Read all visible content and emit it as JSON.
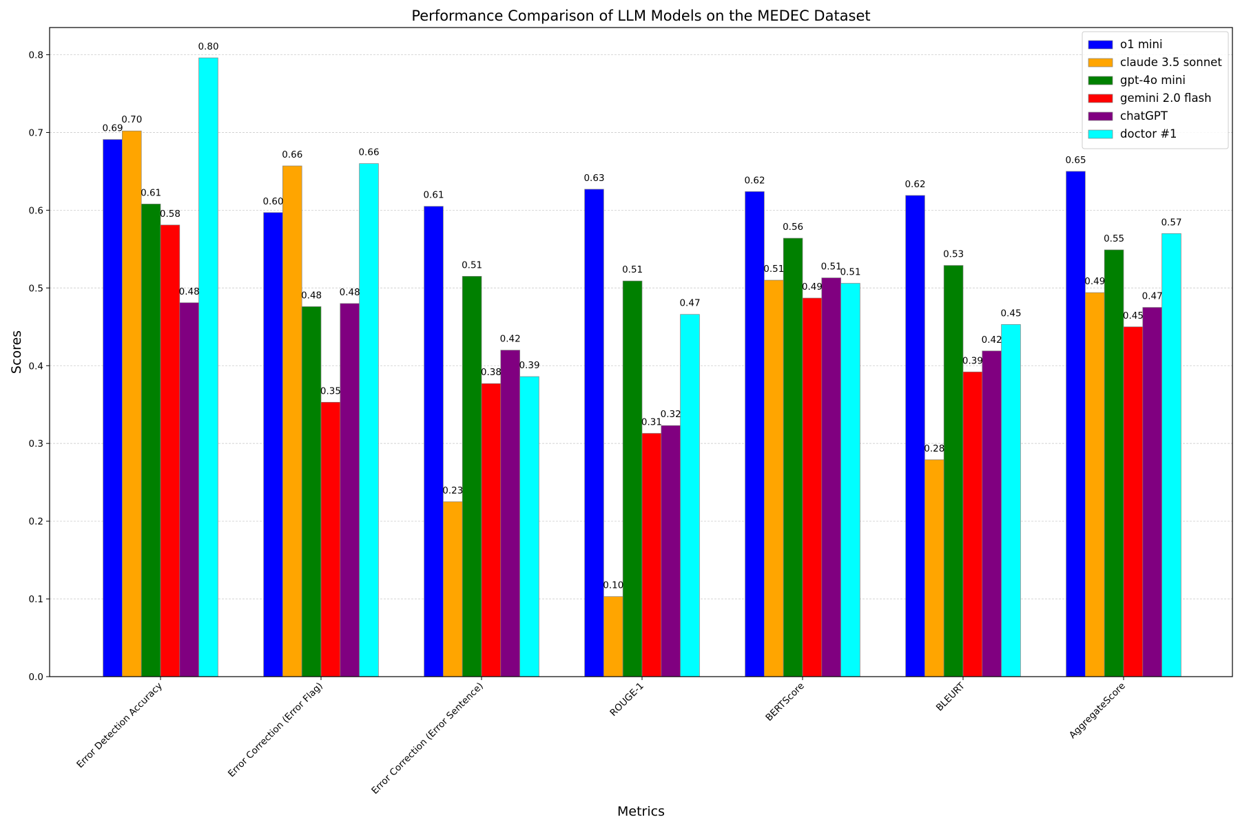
{
  "chart_data": {
    "type": "bar",
    "title": "Performance Comparison of LLM Models on the MEDEC Dataset",
    "xlabel": "Metrics",
    "ylabel": "Scores",
    "ylim": [
      0,
      0.835
    ],
    "yticks": [
      "0.0",
      "0.1",
      "0.2",
      "0.3",
      "0.4",
      "0.5",
      "0.6",
      "0.7",
      "0.8"
    ],
    "grid": "horizontal dashed",
    "legend_position": "top-right",
    "categories": [
      "Error Detection Accuracy",
      "Error Correction (Error Flag)",
      "Error Correction (Error Sentence)",
      "ROUGE-1",
      "BERTScore",
      "BLEURT",
      "AggregateScore"
    ],
    "series": [
      {
        "name": "o1 mini",
        "color": "#0000ff",
        "values": [
          0.691,
          0.597,
          0.605,
          0.627,
          0.624,
          0.619,
          0.65
        ],
        "labels": [
          "0.69",
          "0.60",
          "0.61",
          "0.63",
          "0.62",
          "0.62",
          "0.65"
        ]
      },
      {
        "name": "claude 3.5 sonnet",
        "color": "#ffa500",
        "values": [
          0.702,
          0.657,
          0.225,
          0.103,
          0.51,
          0.279,
          0.494
        ],
        "labels": [
          "0.70",
          "0.66",
          "0.23",
          "0.10",
          "0.51",
          "0.28",
          "0.49"
        ]
      },
      {
        "name": "gpt-4o mini",
        "color": "#008000",
        "values": [
          0.608,
          0.476,
          0.515,
          0.509,
          0.564,
          0.529,
          0.549
        ],
        "labels": [
          "0.61",
          "0.48",
          "0.51",
          "0.51",
          "0.56",
          "0.53",
          "0.55"
        ]
      },
      {
        "name": "gemini 2.0 flash",
        "color": "#ff0000",
        "values": [
          0.581,
          0.353,
          0.377,
          0.313,
          0.487,
          0.392,
          0.45
        ],
        "labels": [
          "0.58",
          "0.35",
          "0.38",
          "0.31",
          "0.49",
          "0.39",
          "0.45"
        ]
      },
      {
        "name": "chatGPT",
        "color": "#800080",
        "values": [
          0.481,
          0.48,
          0.42,
          0.323,
          0.513,
          0.419,
          0.475
        ],
        "labels": [
          "0.48",
          "0.48",
          "0.42",
          "0.32",
          "0.51",
          "0.42",
          "0.47"
        ]
      },
      {
        "name": "doctor #1",
        "color": "#00ffff",
        "values": [
          0.796,
          0.66,
          0.386,
          0.466,
          0.506,
          0.453,
          0.57
        ],
        "labels": [
          "0.80",
          "0.66",
          "0.39",
          "0.47",
          "0.51",
          "0.45",
          "0.57"
        ]
      }
    ]
  }
}
